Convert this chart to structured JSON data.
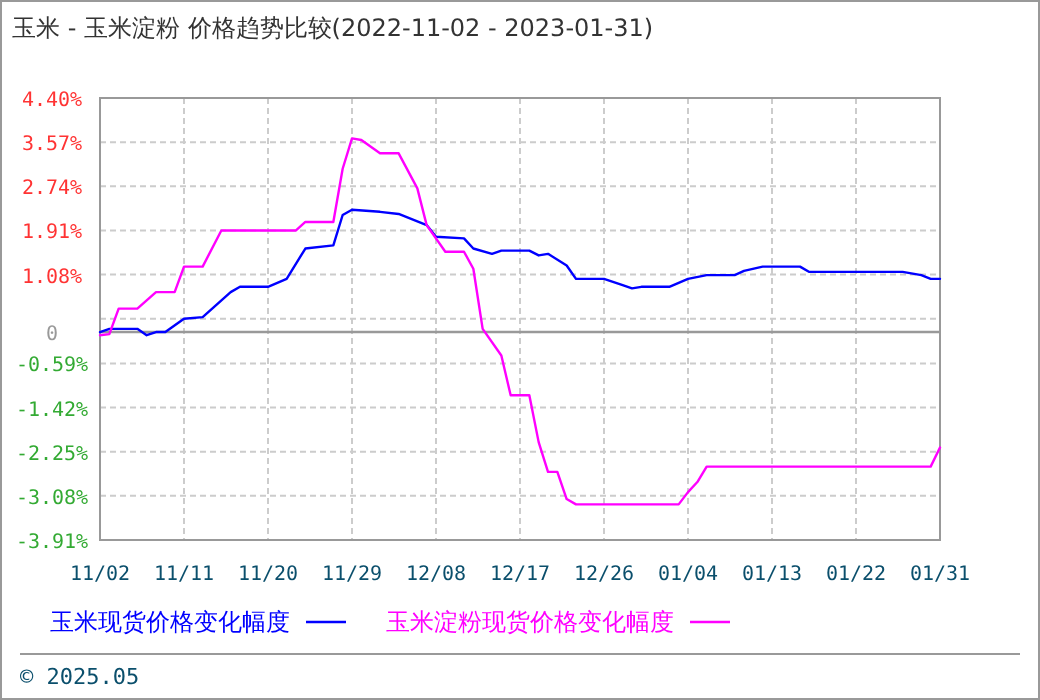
{
  "chart_data": {
    "type": "line",
    "title": "玉米 - 玉米淀粉 价格趋势比较(2022-11-02 - 2023-01-31)",
    "annotations": [
      "© 2025.05"
    ],
    "xlim": [
      "2022-11-02",
      "2023-01-31"
    ],
    "xticks": [
      {
        "value": "2022-11-02",
        "label": "11/02"
      },
      {
        "value": "2022-11-11",
        "label": "11/11"
      },
      {
        "value": "2022-11-20",
        "label": "11/20"
      },
      {
        "value": "2022-11-29",
        "label": "11/29"
      },
      {
        "value": "2022-12-08",
        "label": "12/08"
      },
      {
        "value": "2022-12-17",
        "label": "12/17"
      },
      {
        "value": "2022-12-26",
        "label": "12/26"
      },
      {
        "value": "2023-01-04",
        "label": "01/04"
      },
      {
        "value": "2023-01-13",
        "label": "01/13"
      },
      {
        "value": "2023-01-22",
        "label": "01/22"
      },
      {
        "value": "2023-01-31",
        "label": "01/31"
      }
    ],
    "ylim": [
      -3.91,
      4.4
    ],
    "yticks": [
      {
        "value": 4.4,
        "label": "4.40%"
      },
      {
        "value": 3.57,
        "label": "3.57%"
      },
      {
        "value": 2.74,
        "label": "2.74%"
      },
      {
        "value": 1.91,
        "label": "1.91%"
      },
      {
        "value": 1.08,
        "label": "1.08%"
      },
      {
        "value": 0.25,
        "label": null
      },
      {
        "value": 0,
        "label": "0"
      },
      {
        "value": -0.59,
        "label": "-0.59%"
      },
      {
        "value": -1.42,
        "label": "-1.42%"
      },
      {
        "value": -2.25,
        "label": "-2.25%"
      },
      {
        "value": -3.08,
        "label": "-3.08%"
      },
      {
        "value": -3.91,
        "label": "-3.91%"
      }
    ],
    "grid": true,
    "legend": "bottom",
    "marker": "none",
    "line_style": "solid",
    "ref_lines": [
      {
        "axis": "y",
        "value": 0,
        "color": "#999999"
      }
    ],
    "series": [
      {
        "name": "玉米现货价格变化幅度",
        "color": "#0000ff",
        "x": [
          "2022-11-02",
          "2022-11-03",
          "2022-11-06",
          "2022-11-07",
          "2022-11-08",
          "2022-11-09",
          "2022-11-11",
          "2022-11-13",
          "2022-11-16",
          "2022-11-17",
          "2022-11-20",
          "2022-11-22",
          "2022-11-24",
          "2022-11-27",
          "2022-11-28",
          "2022-11-29",
          "2022-12-02",
          "2022-12-04",
          "2022-12-07",
          "2022-12-08",
          "2022-12-11",
          "2022-12-12",
          "2022-12-14",
          "2022-12-15",
          "2022-12-18",
          "2022-12-19",
          "2022-12-20",
          "2022-12-22",
          "2022-12-23",
          "2022-12-26",
          "2022-12-28",
          "2022-12-29",
          "2022-12-30",
          "2023-01-02",
          "2023-01-04",
          "2023-01-06",
          "2023-01-09",
          "2023-01-10",
          "2023-01-12",
          "2023-01-16",
          "2023-01-17",
          "2023-01-27",
          "2023-01-29",
          "2023-01-30",
          "2023-01-31"
        ],
        "values": [
          0,
          0.06,
          0.06,
          -0.06,
          0,
          0,
          0.25,
          0.28,
          0.75,
          0.85,
          0.85,
          1.0,
          1.57,
          1.63,
          2.2,
          2.3,
          2.26,
          2.22,
          2.01,
          1.79,
          1.76,
          1.57,
          1.47,
          1.53,
          1.53,
          1.44,
          1.47,
          1.25,
          1.0,
          1.0,
          0.88,
          0.82,
          0.85,
          0.85,
          1.0,
          1.07,
          1.07,
          1.15,
          1.23,
          1.23,
          1.13,
          1.13,
          1.07,
          1.0,
          1.0
        ]
      },
      {
        "name": "玉米淀粉现货价格变化幅度",
        "color": "#ff00ff",
        "x": [
          "2022-11-02",
          "2022-11-03",
          "2022-11-04",
          "2022-11-06",
          "2022-11-08",
          "2022-11-10",
          "2022-11-11",
          "2022-11-13",
          "2022-11-15",
          "2022-11-23",
          "2022-11-24",
          "2022-11-27",
          "2022-11-28",
          "2022-11-29",
          "2022-11-30",
          "2022-12-02",
          "2022-12-04",
          "2022-12-06",
          "2022-12-07",
          "2022-12-09",
          "2022-12-11",
          "2022-12-12",
          "2022-12-13",
          "2022-12-15",
          "2022-12-16",
          "2022-12-18",
          "2022-12-19",
          "2022-12-20",
          "2022-12-21",
          "2022-12-22",
          "2022-12-23",
          "2023-01-03",
          "2023-01-04",
          "2023-01-05",
          "2023-01-06",
          "2023-01-30",
          "2023-01-31"
        ],
        "values": [
          -0.06,
          -0.04,
          0.44,
          0.44,
          0.75,
          0.75,
          1.23,
          1.23,
          1.91,
          1.91,
          2.07,
          2.07,
          3.07,
          3.64,
          3.61,
          3.36,
          3.36,
          2.7,
          2.01,
          1.51,
          1.51,
          1.19,
          0.06,
          -0.44,
          -1.19,
          -1.19,
          -2.07,
          -2.63,
          -2.63,
          -3.14,
          -3.24,
          -3.24,
          -3.01,
          -2.82,
          -2.53,
          -2.53,
          -2.17
        ]
      }
    ]
  }
}
